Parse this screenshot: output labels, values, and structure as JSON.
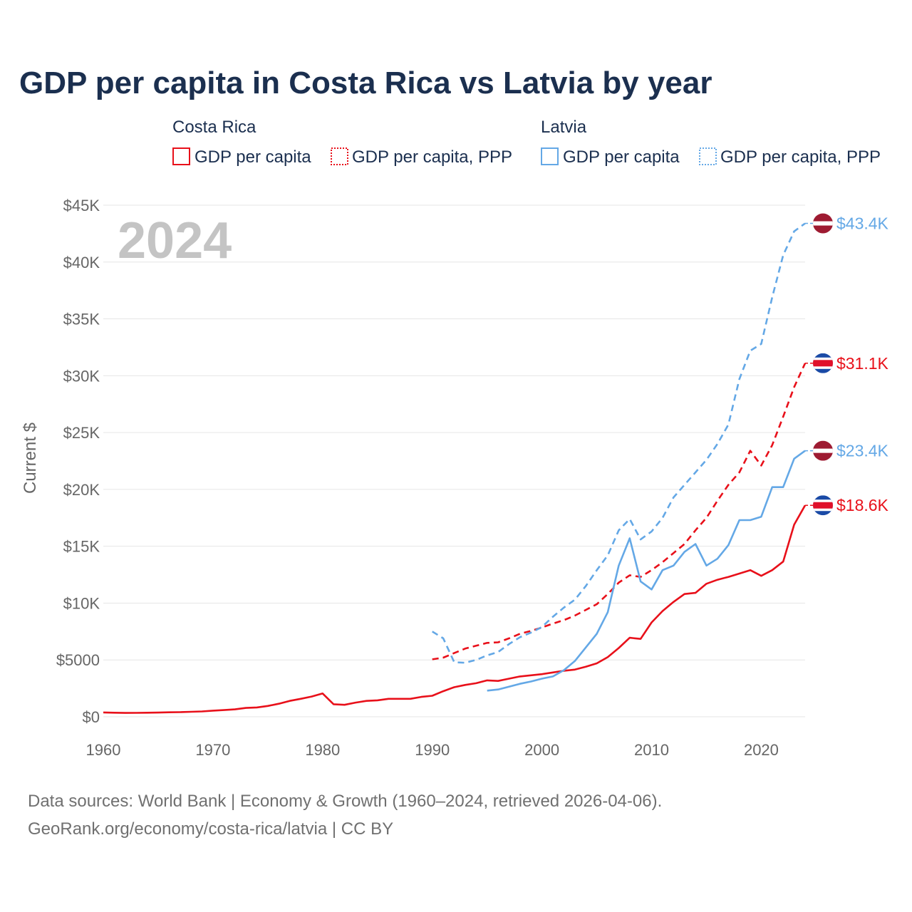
{
  "title": "GDP per capita in Costa Rica vs Latvia by year",
  "legend": {
    "groups": [
      {
        "country": "Costa Rica",
        "items": [
          {
            "label": "GDP per capita",
            "style": "solid"
          },
          {
            "label": "GDP per capita, PPP",
            "style": "dotted"
          }
        ],
        "color": "#e8101a"
      },
      {
        "country": "Latvia",
        "items": [
          {
            "label": "GDP per capita",
            "style": "solid"
          },
          {
            "label": "GDP per capita, PPP",
            "style": "dotted"
          }
        ],
        "color": "#64a8e6"
      }
    ]
  },
  "year_label": "2024",
  "source_lines": [
    "Data sources: World Bank | Economy & Growth (1960–2024, retrieved 2026-04-06).",
    "GeoRank.org/economy/costa-rica/latvia | CC BY"
  ],
  "chart_data": {
    "type": "line",
    "title": "GDP per capita in Costa Rica vs Latvia by year",
    "xlabel": "",
    "ylabel": "Current $",
    "xlim": [
      1960,
      2024
    ],
    "ylim": [
      0,
      45000
    ],
    "x_ticks": [
      1960,
      1970,
      1980,
      1990,
      2000,
      2010,
      2020
    ],
    "y_ticks": [
      {
        "value": 0,
        "label": "$0"
      },
      {
        "value": 5000,
        "label": "$5000"
      },
      {
        "value": 10000,
        "label": "$10K"
      },
      {
        "value": 15000,
        "label": "$15K"
      },
      {
        "value": 20000,
        "label": "$20K"
      },
      {
        "value": 25000,
        "label": "$25K"
      },
      {
        "value": 30000,
        "label": "$30K"
      },
      {
        "value": 35000,
        "label": "$35K"
      },
      {
        "value": 40000,
        "label": "$40K"
      },
      {
        "value": 45000,
        "label": "$45K"
      }
    ],
    "grid": true,
    "series": [
      {
        "name": "Costa Rica GDP per capita",
        "country": "Costa Rica",
        "color": "#e8101a",
        "dash": false,
        "end_label": "$18.6K",
        "end_value": 18600,
        "x": [
          1960,
          1961,
          1962,
          1963,
          1964,
          1965,
          1966,
          1967,
          1968,
          1969,
          1970,
          1971,
          1972,
          1973,
          1974,
          1975,
          1976,
          1977,
          1978,
          1979,
          1980,
          1981,
          1982,
          1983,
          1984,
          1985,
          1986,
          1987,
          1988,
          1989,
          1990,
          1991,
          1992,
          1993,
          1994,
          1995,
          1996,
          1997,
          1998,
          1999,
          2000,
          2001,
          2002,
          2003,
          2004,
          2005,
          2006,
          2007,
          2008,
          2009,
          2010,
          2011,
          2012,
          2013,
          2014,
          2015,
          2016,
          2017,
          2018,
          2019,
          2020,
          2021,
          2022,
          2023,
          2024
        ],
        "values": [
          380,
          360,
          340,
          345,
          355,
          370,
          395,
          410,
          440,
          470,
          540,
          590,
          650,
          780,
          820,
          950,
          1150,
          1400,
          1580,
          1780,
          2050,
          1100,
          1050,
          1250,
          1400,
          1450,
          1580,
          1580,
          1580,
          1750,
          1850,
          2250,
          2600,
          2800,
          2950,
          3200,
          3150,
          3350,
          3550,
          3650,
          3750,
          3900,
          4050,
          4150,
          4400,
          4700,
          5250,
          6050,
          6950,
          6850,
          8300,
          9300,
          10100,
          10800,
          10900,
          11700,
          12050,
          12300,
          12600,
          12900,
          12400,
          12900,
          13650,
          16900,
          18600
        ]
      },
      {
        "name": "Costa Rica GDP per capita, PPP",
        "country": "Costa Rica",
        "color": "#e8101a",
        "dash": true,
        "end_label": "$31.1K",
        "end_value": 31100,
        "x": [
          1990,
          1991,
          1992,
          1993,
          1994,
          1995,
          1996,
          1997,
          1998,
          1999,
          2000,
          2001,
          2002,
          2003,
          2004,
          2005,
          2006,
          2007,
          2008,
          2009,
          2010,
          2011,
          2012,
          2013,
          2014,
          2015,
          2016,
          2017,
          2018,
          2019,
          2020,
          2021,
          2022,
          2023,
          2024
        ],
        "values": [
          5050,
          5200,
          5600,
          6000,
          6250,
          6500,
          6550,
          6900,
          7300,
          7550,
          7850,
          8200,
          8500,
          8900,
          9400,
          9900,
          10800,
          11800,
          12450,
          12300,
          12900,
          13600,
          14400,
          15200,
          16400,
          17500,
          19000,
          20400,
          21500,
          23400,
          22100,
          23900,
          26400,
          29000,
          31100
        ]
      },
      {
        "name": "Latvia GDP per capita",
        "country": "Latvia",
        "color": "#64a8e6",
        "dash": false,
        "end_label": "$23.4K",
        "end_value": 23400,
        "x": [
          1995,
          1996,
          1997,
          1998,
          1999,
          2000,
          2001,
          2002,
          2003,
          2004,
          2005,
          2006,
          2007,
          2008,
          2009,
          2010,
          2011,
          2012,
          2013,
          2014,
          2015,
          2016,
          2017,
          2018,
          2019,
          2020,
          2021,
          2022,
          2023,
          2024
        ],
        "values": [
          2300,
          2400,
          2650,
          2900,
          3100,
          3350,
          3550,
          4100,
          4900,
          6100,
          7300,
          9200,
          13300,
          15700,
          11900,
          11200,
          12900,
          13300,
          14500,
          15200,
          13300,
          13900,
          15100,
          17300,
          17300,
          17600,
          20200,
          20200,
          22700,
          23400
        ]
      },
      {
        "name": "Latvia GDP per capita, PPP",
        "country": "Latvia",
        "color": "#64a8e6",
        "dash": true,
        "end_label": "$43.4K",
        "end_value": 43400,
        "x": [
          1990,
          1991,
          1992,
          1993,
          1994,
          1995,
          1996,
          1997,
          1998,
          1999,
          2000,
          2001,
          2002,
          2003,
          2004,
          2005,
          2006,
          2007,
          2008,
          2009,
          2010,
          2011,
          2012,
          2013,
          2014,
          2015,
          2016,
          2017,
          2018,
          2019,
          2020,
          2021,
          2022,
          2023,
          2024
        ],
        "values": [
          7500,
          6900,
          4800,
          4750,
          5000,
          5400,
          5700,
          6400,
          7000,
          7400,
          7900,
          8800,
          9600,
          10300,
          11500,
          12900,
          14200,
          16400,
          17400,
          15600,
          16300,
          17500,
          19300,
          20400,
          21500,
          22600,
          24000,
          25700,
          29700,
          32200,
          32800,
          36900,
          40600,
          42700,
          43400
        ]
      }
    ]
  }
}
